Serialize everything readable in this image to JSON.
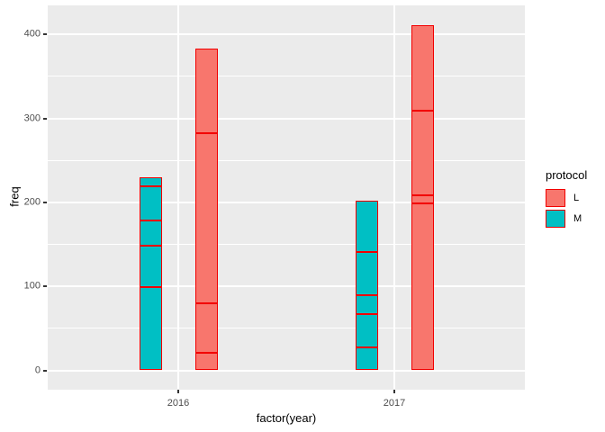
{
  "chart_data": {
    "type": "bar",
    "mode": "dodged-stacked",
    "title": "",
    "xlabel": "factor(year)",
    "ylabel": "freq",
    "categories": [
      "2016",
      "2017"
    ],
    "series": [
      {
        "name": "L",
        "fill": "#F8766D",
        "stacks": [
          [
            22,
            59,
            202,
            100
          ],
          [
            200,
            10,
            100,
            101
          ]
        ],
        "totals": [
          383,
          411
        ]
      },
      {
        "name": "M",
        "fill": "#00BFC4",
        "stacks": [
          [
            100,
            50,
            30,
            40,
            10
          ],
          [
            28,
            40,
            23,
            51,
            60
          ]
        ],
        "totals": [
          230,
          202
        ]
      }
    ],
    "outline_color": "#F20000",
    "y_major_ticks": [
      0,
      100,
      200,
      300,
      400
    ],
    "y_minor_ticks": [
      50,
      150,
      250,
      350
    ],
    "ylim": [
      0,
      433
    ],
    "grid": true,
    "legend_position": "right",
    "panel_bg": "#EBEBEB",
    "grid_color": "#FFFFFF",
    "tick_label_color": "#4D4D4D",
    "axis_title_color": "#000000"
  },
  "axes": {
    "y_tick_labels": [
      "0",
      "100",
      "200",
      "300",
      "400"
    ],
    "x_tick_labels": [
      "2016",
      "2017"
    ]
  },
  "legend": {
    "title": "protocol",
    "items": [
      {
        "label": "L",
        "color": "#F8766D"
      },
      {
        "label": "M",
        "color": "#00BFC4"
      }
    ]
  }
}
